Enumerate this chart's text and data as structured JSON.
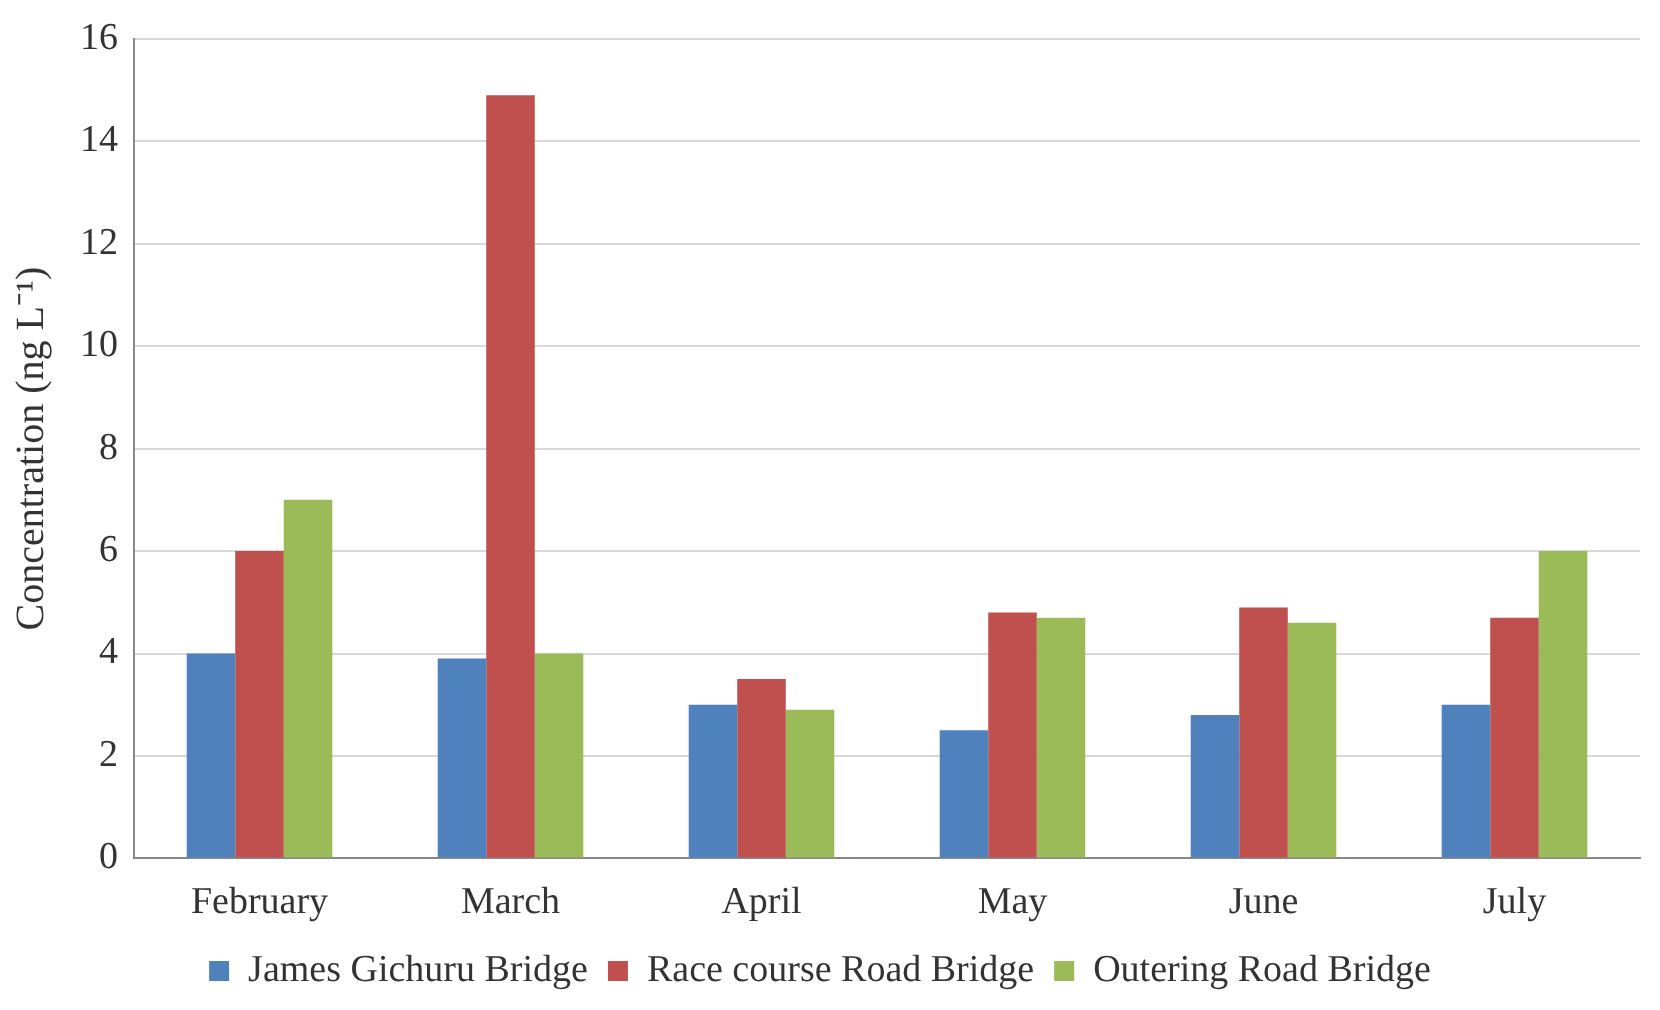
{
  "chart_data": {
    "type": "bar",
    "ylabel": "Concentration (ng L⁻¹)",
    "categories": [
      "February",
      "March",
      "April",
      "May",
      "June",
      "July"
    ],
    "series": [
      {
        "name": "James Gichuru Bridge",
        "color": "#4f81bd",
        "values": [
          4,
          3.9,
          3,
          2.5,
          2.8,
          3
        ]
      },
      {
        "name": "Race course Road Bridge",
        "color": "#c0504d",
        "values": [
          6,
          14.9,
          3.5,
          4.8,
          4.9,
          4.7
        ]
      },
      {
        "name": "Outering Road Bridge",
        "color": "#9bbb59",
        "values": [
          7,
          4,
          2.9,
          4.7,
          4.6,
          6
        ]
      }
    ],
    "ylim": [
      0,
      16
    ],
    "yticks": [
      0,
      2,
      4,
      6,
      8,
      10,
      12,
      14,
      16
    ],
    "grid": "y",
    "legend": "bottom"
  }
}
